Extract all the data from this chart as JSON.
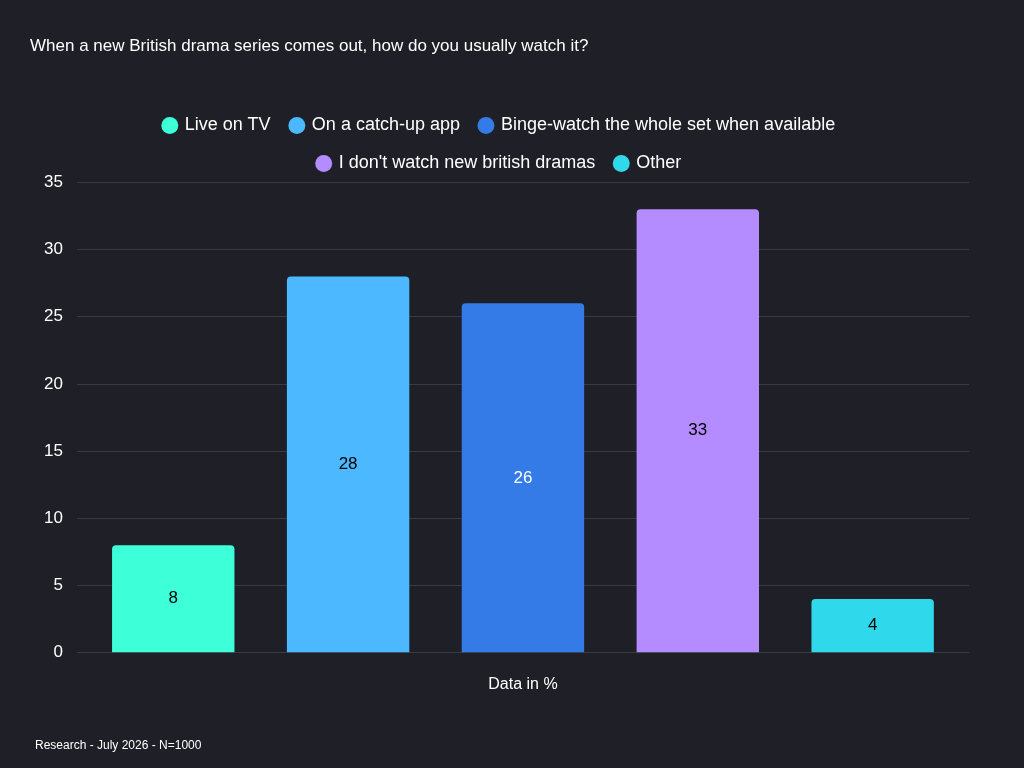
{
  "chart_data": {
    "type": "bar",
    "title": "When a new British drama series comes out, how do you usually watch it?",
    "categories": [
      "Data in %"
    ],
    "series": [
      {
        "name": "Live on TV",
        "color": "#3dffd8",
        "values": [
          8
        ]
      },
      {
        "name": "On a catch-up app",
        "color": "#4bb8ff",
        "values": [
          28
        ]
      },
      {
        "name": "Binge-watch the whole set when available",
        "color": "#347be8",
        "values": [
          26
        ]
      },
      {
        "name": "I don't watch new british dramas",
        "color": "#b48cff",
        "values": [
          33
        ]
      },
      {
        "name": "Other",
        "color": "#2fd8ea",
        "values": [
          4
        ]
      }
    ],
    "ylim": [
      0,
      35
    ],
    "yticks": [
      0,
      5,
      10,
      15,
      20,
      25,
      30,
      35
    ],
    "grid": "y",
    "legend": "top",
    "data_labels": true,
    "annotations": [
      "Research - July 2026 - N=1000"
    ]
  }
}
